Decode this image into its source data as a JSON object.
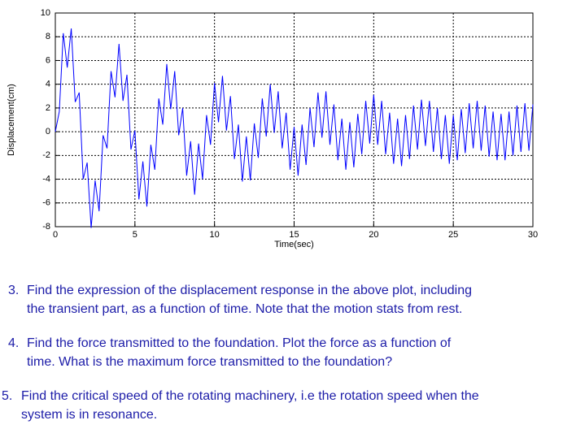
{
  "chart_data": {
    "type": "line",
    "x_label": "Time(sec)",
    "y_label": "Displacement(cm)",
    "xlim": [
      0,
      30
    ],
    "ylim": [
      -8,
      10
    ],
    "xticks": [
      0,
      5,
      10,
      15,
      20,
      25,
      30
    ],
    "yticks": [
      -8,
      -6,
      -4,
      -2,
      0,
      2,
      4,
      6,
      8,
      10
    ],
    "grid": true,
    "color": "#0000ff",
    "x": [
      0,
      0.25,
      0.5,
      0.75,
      1,
      1.25,
      1.5,
      1.75,
      2,
      2.25,
      2.5,
      2.75,
      3,
      3.25,
      3.5,
      3.75,
      4,
      4.25,
      4.5,
      4.75,
      5,
      5.25,
      5.5,
      5.75,
      6,
      6.25,
      6.5,
      6.75,
      7,
      7.25,
      7.5,
      7.75,
      8,
      8.25,
      8.5,
      8.75,
      9,
      9.25,
      9.5,
      9.75,
      10,
      10.25,
      10.5,
      10.75,
      11,
      11.25,
      11.5,
      11.75,
      12,
      12.25,
      12.5,
      12.75,
      13,
      13.25,
      13.5,
      13.75,
      14,
      14.25,
      14.5,
      14.75,
      15,
      15.25,
      15.5,
      15.75,
      16,
      16.25,
      16.5,
      16.75,
      17,
      17.25,
      17.5,
      17.75,
      18,
      18.25,
      18.5,
      18.75,
      19,
      19.25,
      19.5,
      19.75,
      20,
      20.25,
      20.5,
      20.75,
      21,
      21.25,
      21.5,
      21.75,
      22,
      22.25,
      22.5,
      22.75,
      23,
      23.25,
      23.5,
      23.75,
      24,
      24.25,
      24.5,
      24.75,
      25,
      25.25,
      25.5,
      25.75,
      26,
      26.25,
      26.5,
      26.75,
      27,
      27.25,
      27.5,
      27.75,
      28,
      28.25,
      28.5,
      28.75,
      29,
      29.25,
      29.5,
      29.75,
      30
    ],
    "values": [
      0,
      1.7,
      8.3,
      5.4,
      8.7,
      2.5,
      3.3,
      -4.0,
      -2.6,
      -8.1,
      -4.1,
      -6.7,
      -0.3,
      -1.4,
      5.1,
      2.9,
      7.4,
      2.6,
      4.8,
      -1.5,
      0.1,
      -5.7,
      -2.5,
      -6.3,
      -1.1,
      -3.2,
      2.8,
      0.6,
      5.7,
      1.9,
      5.1,
      -0.3,
      2,
      -3.7,
      -0.8,
      -5.3,
      -1.0,
      -4.0,
      1.4,
      -1.1,
      4.1,
      0.8,
      4.7,
      0.1,
      3.0,
      -2.3,
      0.6,
      -4.2,
      -0.4,
      -4.1,
      0.7,
      -2.2,
      2.8,
      -0.4,
      4.0,
      -0.1,
      3.4,
      -1.4,
      1.6,
      -3.2,
      0.4,
      -3.7,
      0.6,
      -2.8,
      2,
      -1.3,
      3.3,
      -0.5,
      3.4,
      -1.1,
      2.3,
      -2.4,
      1.1,
      -3.2,
      0.8,
      -3.0,
      1.5,
      -1.9,
      2.6,
      -1.0,
      3.1,
      -1.1,
      2.6,
      -1.9,
      1.6,
      -2.7,
      1.1,
      -2.9,
      1.4,
      -2.3,
      2.2,
      -1.5,
      2.7,
      -1.2,
      2.6,
      -1.7,
      2,
      -2.3,
      1.4,
      -2.7,
      1.4,
      -2.4,
      1.9,
      -1.8,
      2.4,
      -1.4,
      2.6,
      -1.6,
      2.2,
      -2.1,
      1.7,
      -2.4,
      1.5,
      -2.4,
      1.7,
      -2.0,
      2.2,
      -1.7,
      2.4,
      -1.6,
      2.3
    ]
  },
  "questions": [
    {
      "number": "3.",
      "lines": [
        "Find the expression of the displacement response in the above plot, including",
        "the transient part, as a function of time.  Note that the motion stats from rest."
      ]
    },
    {
      "number": "4.",
      "lines": [
        "Find the force transmitted to the foundation.  Plot the force as a function of",
        "time.   What is the maximum force transmitted to the foundation?"
      ]
    },
    {
      "number": "5.",
      "lines": [
        "Find the critical speed of the rotating machinery, i.e  the rotation speed when the",
        "system is in resonance."
      ]
    }
  ]
}
